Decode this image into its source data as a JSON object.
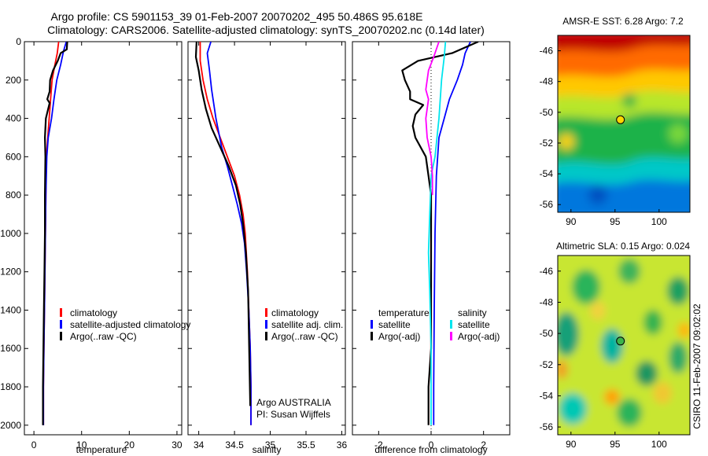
{
  "header": {
    "line1": "Argo profile: CS 5901153_39 01-Feb-2007 20070202_495 50.486S 95.618E",
    "line2": "Climatology: CARS2006. Satellite-adjusted climatology: synTS_20070202.nc (0.14d later)"
  },
  "colors": {
    "climatology": "#ff0000",
    "satellite": "#0000ff",
    "argo": "#000000",
    "sat_diff_s": "#00e5ee",
    "argo_adj_s": "#ff00ff"
  },
  "chart_data": [
    {
      "type": "line",
      "id": "temperature",
      "xlabel": "temperature",
      "ylabel": "",
      "xlim": [
        -2,
        31
      ],
      "ylim": [
        2050,
        0
      ],
      "xticks": [
        0,
        10,
        20,
        30
      ],
      "yticks": [
        0,
        200,
        400,
        600,
        800,
        1000,
        1200,
        1400,
        1600,
        1800,
        2000
      ],
      "legend": {
        "placement": "lower-right",
        "entries": [
          "climatology",
          "satellite-adjusted climatology",
          "Argo(..raw -QC)"
        ]
      },
      "series": [
        {
          "name": "climatology",
          "color": "#ff0000",
          "points": [
            [
              5.2,
              0
            ],
            [
              4.9,
              60
            ],
            [
              4.4,
              120
            ],
            [
              3.8,
              200
            ],
            [
              3.5,
              300
            ],
            [
              3.2,
              400
            ],
            [
              2.9,
              500
            ],
            [
              2.6,
              600
            ],
            [
              2.5,
              800
            ],
            [
              2.4,
              1000
            ],
            [
              2.3,
              1200
            ],
            [
              2.2,
              1400
            ],
            [
              2.1,
              1600
            ],
            [
              2.0,
              1800
            ],
            [
              2.0,
              2000
            ]
          ]
        },
        {
          "name": "satellite-adjusted climatology",
          "color": "#0000ff",
          "points": [
            [
              6.8,
              0
            ],
            [
              6.2,
              50
            ],
            [
              5.6,
              120
            ],
            [
              4.8,
              200
            ],
            [
              4.2,
              300
            ],
            [
              3.7,
              400
            ],
            [
              3.0,
              500
            ],
            [
              2.7,
              600
            ],
            [
              2.5,
              800
            ],
            [
              2.4,
              1000
            ],
            [
              2.3,
              1200
            ],
            [
              2.2,
              1400
            ],
            [
              2.1,
              1600
            ],
            [
              2.0,
              1800
            ],
            [
              2.0,
              2000
            ]
          ]
        },
        {
          "name": "Argo(..raw -QC)",
          "color": "#000000",
          "points": [
            [
              7.0,
              0
            ],
            [
              6.9,
              40
            ],
            [
              5.6,
              60
            ],
            [
              5.0,
              100
            ],
            [
              4.0,
              150
            ],
            [
              3.4,
              200
            ],
            [
              3.3,
              260
            ],
            [
              2.8,
              300
            ],
            [
              3.3,
              320
            ],
            [
              2.9,
              360
            ],
            [
              2.5,
              400
            ],
            [
              2.4,
              450
            ],
            [
              2.3,
              500
            ],
            [
              2.4,
              600
            ],
            [
              2.3,
              800
            ],
            [
              2.3,
              1000
            ],
            [
              2.2,
              1200
            ],
            [
              2.1,
              1400
            ],
            [
              2.0,
              1600
            ],
            [
              1.9,
              1800
            ],
            [
              1.9,
              2000
            ]
          ]
        }
      ]
    },
    {
      "type": "line",
      "id": "salinity",
      "xlabel": "salinity",
      "ylabel": "",
      "xlim": [
        33.85,
        36.05
      ],
      "ylim": [
        2050,
        0
      ],
      "xticks": [
        34,
        34.5,
        35,
        35.5,
        36
      ],
      "legend": {
        "placement": "lower-right",
        "entries": [
          "climatology",
          "satellite adj. clim.",
          "Argo(..raw -QC)"
        ]
      },
      "annotation": [
        "Argo AUSTRALIA",
        "PI: Susan Wijffels"
      ],
      "series": [
        {
          "name": "climatology",
          "color": "#ff0000",
          "points": [
            [
              34.02,
              0
            ],
            [
              34.02,
              100
            ],
            [
              34.06,
              200
            ],
            [
              34.12,
              300
            ],
            [
              34.2,
              400
            ],
            [
              34.3,
              500
            ],
            [
              34.4,
              600
            ],
            [
              34.5,
              700
            ],
            [
              34.57,
              800
            ],
            [
              34.62,
              900
            ],
            [
              34.65,
              1000
            ],
            [
              34.68,
              1200
            ],
            [
              34.7,
              1400
            ],
            [
              34.72,
              1600
            ],
            [
              34.73,
              1800
            ],
            [
              34.73,
              2000
            ]
          ]
        },
        {
          "name": "satellite adj. clim.",
          "color": "#0000ff",
          "points": [
            [
              34.17,
              0
            ],
            [
              34.12,
              60
            ],
            [
              34.15,
              150
            ],
            [
              34.18,
              250
            ],
            [
              34.24,
              400
            ],
            [
              34.32,
              550
            ],
            [
              34.4,
              650
            ],
            [
              34.47,
              750
            ],
            [
              34.54,
              850
            ],
            [
              34.6,
              950
            ],
            [
              34.64,
              1050
            ],
            [
              34.67,
              1200
            ],
            [
              34.7,
              1400
            ],
            [
              34.72,
              1600
            ],
            [
              34.73,
              1800
            ],
            [
              34.73,
              2000
            ]
          ]
        },
        {
          "name": "Argo(..raw -QC)",
          "color": "#000000",
          "points": [
            [
              33.97,
              0
            ],
            [
              33.96,
              80
            ],
            [
              34.0,
              150
            ],
            [
              34.04,
              250
            ],
            [
              34.1,
              350
            ],
            [
              34.18,
              450
            ],
            [
              34.3,
              550
            ],
            [
              34.42,
              650
            ],
            [
              34.52,
              750
            ],
            [
              34.58,
              850
            ],
            [
              34.62,
              950
            ],
            [
              34.66,
              1100
            ],
            [
              34.69,
              1300
            ],
            [
              34.7,
              1500
            ],
            [
              34.71,
              1700
            ],
            [
              34.72,
              1900
            ]
          ]
        }
      ]
    },
    {
      "type": "line",
      "id": "difference",
      "xlabel": "difference from climatology",
      "ylabel": "",
      "xlim": [
        -3,
        3
      ],
      "ylim": [
        2050,
        0
      ],
      "xticks": [
        -2,
        0,
        2
      ],
      "legend": {
        "placement": "lower-center",
        "col1_title": "temperature",
        "col2_title": "salinity",
        "entries_t": [
          "satellite",
          "Argo(-adj)"
        ],
        "entries_s": [
          "satellite",
          "Argo(-adj)"
        ]
      },
      "series": [
        {
          "name": "temperature satellite",
          "color": "#0000ff",
          "points": [
            [
              1.5,
              0
            ],
            [
              1.3,
              60
            ],
            [
              1.2,
              120
            ],
            [
              1.0,
              200
            ],
            [
              0.7,
              300
            ],
            [
              0.5,
              400
            ],
            [
              0.3,
              500
            ],
            [
              0.2,
              700
            ],
            [
              0.15,
              1000
            ],
            [
              0.12,
              1400
            ],
            [
              0.1,
              1800
            ],
            [
              0.1,
              2000
            ]
          ]
        },
        {
          "name": "temperature Argo(-adj)",
          "color": "#000000",
          "points": [
            [
              1.8,
              0
            ],
            [
              0.8,
              60
            ],
            [
              -0.5,
              100
            ],
            [
              -1.1,
              150
            ],
            [
              -1.0,
              200
            ],
            [
              -0.8,
              260
            ],
            [
              -0.8,
              300
            ],
            [
              -0.3,
              330
            ],
            [
              -0.6,
              380
            ],
            [
              -0.7,
              440
            ],
            [
              -0.6,
              500
            ],
            [
              -0.2,
              600
            ],
            [
              -0.1,
              700
            ],
            [
              0,
              800
            ],
            [
              0,
              1000
            ],
            [
              0,
              1200
            ],
            [
              0,
              1600
            ],
            [
              -0.1,
              1800
            ],
            [
              -0.1,
              2000
            ]
          ]
        },
        {
          "name": "salinity satellite",
          "color": "#00e5ee",
          "points": [
            [
              0.55,
              0
            ],
            [
              0.5,
              80
            ],
            [
              0.4,
              200
            ],
            [
              0.3,
              400
            ],
            [
              0.15,
              600
            ],
            [
              0,
              700
            ],
            [
              -0.05,
              900
            ],
            [
              -0.1,
              1100
            ],
            [
              -0.05,
              1300
            ],
            [
              0,
              1600
            ],
            [
              0,
              2000
            ]
          ]
        },
        {
          "name": "salinity Argo(-adj)",
          "color": "#ff00ff",
          "points": [
            [
              0.3,
              0
            ],
            [
              0.1,
              80
            ],
            [
              -0.1,
              150
            ],
            [
              -0.2,
              250
            ],
            [
              -0.1,
              300
            ],
            [
              -0.2,
              400
            ],
            [
              -0.15,
              500
            ],
            [
              0,
              600
            ],
            [
              0.05,
              700
            ],
            [
              0.05,
              800
            ]
          ]
        }
      ]
    }
  ],
  "maps": [
    {
      "id": "sst",
      "title": "AMSR-E SST: 6.28 Argo: 7.2",
      "xlim": [
        88.5,
        103.5
      ],
      "ylim": [
        -56.5,
        -45
      ],
      "xticks": [
        90,
        95,
        100
      ],
      "yticks": [
        -46,
        -48,
        -50,
        -52,
        -54,
        -56
      ],
      "marker": {
        "lon": 95.618,
        "lat": -50.486,
        "fill": "#ffd700"
      }
    },
    {
      "id": "sla",
      "title": "Altimetric SLA: 0.15 Argo: 0.024",
      "xlim": [
        88.5,
        103.5
      ],
      "ylim": [
        -56.5,
        -45
      ],
      "xticks": [
        90,
        95,
        100
      ],
      "yticks": [
        -46,
        -48,
        -50,
        -52,
        -54,
        -56
      ],
      "marker": {
        "lon": 95.618,
        "lat": -50.486,
        "fill": "#3cb44b"
      }
    }
  ],
  "stamp": "CSIRO 11-Feb-2007 09:02:02"
}
